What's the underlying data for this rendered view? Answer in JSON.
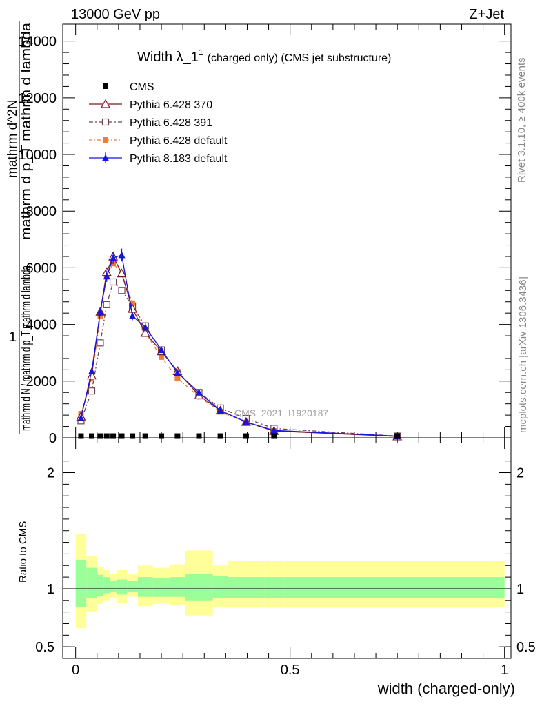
{
  "header": {
    "energy": "13000 GeV pp",
    "process": "Z+Jet",
    "rivet": "Rivet 3.1.10, ≥ 400k events",
    "site": "mcplots.cern.ch [arXiv:1306.3436]",
    "watermark": "CMS_2021_I1920187"
  },
  "chart_data": [
    {
      "type": "line",
      "title_main": "Width λ_1",
      "title_sup": "1",
      "title_sub": "(charged only) (CMS jet substructure)",
      "xlabel": "width (charged-only)",
      "ylabel_top": "1",
      "ylabel_num": "mathrm d N / mathrm d p_T mathrm d p_T mathrm d lambda",
      "ylabel_den": "mathrm d N / mathrm d p_T mathrm d p_T mathrm d lambda",
      "ylabel_a": "mathrm d^2N",
      "ylabel_b": "mathrm d p_T mathrm d lambda",
      "ylabel_c": "mathrm d N / mathrm d p_T mathrm d lambda",
      "xlim": [
        -0.03,
        1.015
      ],
      "ylim": [
        0,
        14600
      ],
      "yticks": [
        0,
        2000,
        4000,
        6000,
        8000,
        10000,
        12000,
        14000
      ],
      "ytick_labels": [
        "0",
        "2000",
        "4000",
        "6000",
        "8000",
        "10000",
        "12000",
        "14000"
      ],
      "x": [
        0.0125,
        0.0375,
        0.0575,
        0.0725,
        0.0875,
        0.1075,
        0.1325,
        0.1625,
        0.2,
        0.2375,
        0.2875,
        0.3375,
        0.3975,
        0.4625,
        0.75
      ],
      "legend": [
        "CMS",
        "Pythia 6.428 370",
        "Pythia 6.428 391",
        "Pythia 6.428 default",
        "Pythia 8.183 default"
      ],
      "series": [
        {
          "name": "CMS",
          "color": "#000000",
          "values": [
            60,
            60,
            60,
            60,
            60,
            60,
            60,
            60,
            60,
            60,
            60,
            60,
            60,
            60,
            60
          ]
        },
        {
          "name": "Pythia 6.428 370",
          "color": "#7a1a22",
          "values": [
            750,
            2200,
            4450,
            5850,
            6400,
            5800,
            4550,
            3700,
            3050,
            2350,
            1500,
            960,
            560,
            240,
            50
          ]
        },
        {
          "name": "Pythia 6.428 391",
          "color": "#6b4650",
          "values": [
            600,
            1650,
            3350,
            4700,
            5500,
            5200,
            4650,
            3950,
            3100,
            2300,
            1600,
            1050,
            680,
            330,
            60
          ]
        },
        {
          "name": "Pythia 6.428 default",
          "color": "#f07c3c",
          "values": [
            850,
            2100,
            4300,
            5700,
            6150,
            5800,
            4750,
            3700,
            2850,
            2100,
            1450,
            920,
            540,
            240,
            50
          ]
        },
        {
          "name": "Pythia 8.183 default",
          "color": "#1616e0",
          "values": [
            700,
            2350,
            4450,
            5700,
            6350,
            6450,
            4300,
            3900,
            3100,
            2300,
            1600,
            960,
            560,
            260,
            60
          ]
        }
      ]
    },
    {
      "type": "area",
      "ylabel": "Ratio to CMS",
      "xlim": [
        -0.03,
        1.015
      ],
      "ylim": [
        0.4,
        2.3
      ],
      "yticks": [
        0.5,
        1,
        2
      ],
      "ytick_labels": [
        "0.5",
        "1",
        "2"
      ],
      "xticks": [
        0,
        0.5,
        1
      ],
      "xtick_labels": [
        "0",
        "0.5",
        "1"
      ],
      "bin_edges": [
        0,
        0.025,
        0.05,
        0.065,
        0.08,
        0.095,
        0.12,
        0.145,
        0.18,
        0.22,
        0.255,
        0.32,
        0.355,
        0.44,
        0.485,
        1.0
      ],
      "band_inner_lo": [
        0.84,
        0.92,
        0.94,
        0.96,
        0.97,
        0.95,
        0.97,
        0.93,
        0.93,
        0.93,
        0.9,
        0.92,
        0.92,
        0.92,
        0.92
      ],
      "band_inner_hi": [
        1.25,
        1.18,
        1.12,
        1.1,
        1.07,
        1.08,
        1.07,
        1.1,
        1.09,
        1.1,
        1.13,
        1.11,
        1.1,
        1.1,
        1.1
      ],
      "band_outer_lo": [
        0.66,
        0.8,
        0.87,
        0.9,
        0.92,
        0.88,
        0.93,
        0.85,
        0.87,
        0.86,
        0.77,
        0.84,
        0.84,
        0.84,
        0.84
      ],
      "band_outer_hi": [
        1.47,
        1.28,
        1.19,
        1.16,
        1.13,
        1.16,
        1.13,
        1.2,
        1.18,
        1.21,
        1.33,
        1.2,
        1.24,
        1.24,
        1.24
      ],
      "ref_line": 1,
      "inner_color": "#9aff99",
      "outer_color": "#ffff99"
    }
  ]
}
